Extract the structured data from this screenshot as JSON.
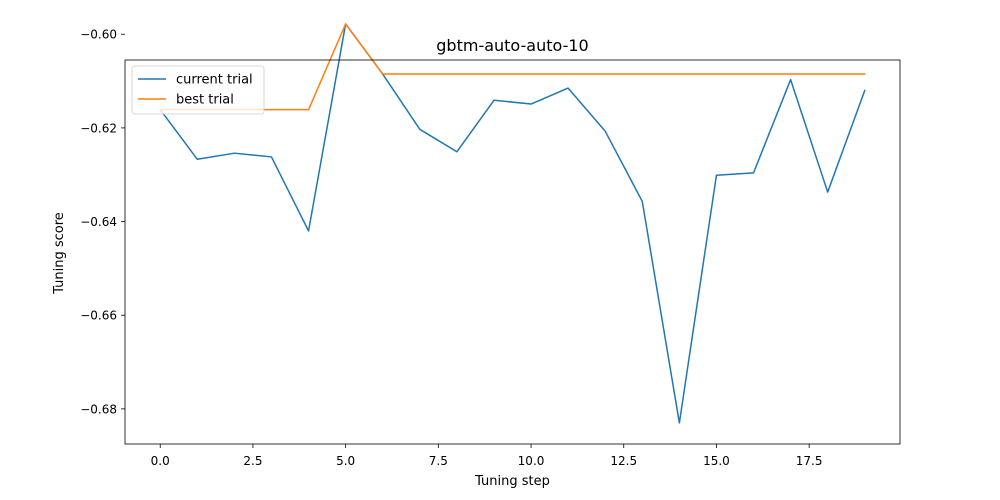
{
  "chart_data": {
    "type": "line",
    "title": "gbtm-auto-auto-10",
    "xlabel": "Tuning step",
    "ylabel": "Tuning score",
    "xlim": [
      -0.95,
      19.95
    ],
    "ylim": [
      -0.6875,
      -0.6055
    ],
    "xticks": [
      0,
      2.5,
      5,
      7.5,
      10,
      12.5,
      15,
      17.5
    ],
    "xtick_labels": [
      "0.0",
      "2.5",
      "5.0",
      "7.5",
      "10.0",
      "12.5",
      "15.0",
      "17.5"
    ],
    "yticks": [
      -0.68,
      -0.66,
      -0.64,
      -0.62,
      -0.6
    ],
    "ytick_labels": [
      "−0.68",
      "−0.66",
      "−0.64",
      "−0.62",
      "−0.60"
    ],
    "grid": false,
    "legend_position": "top-left",
    "x": [
      0,
      1,
      2,
      3,
      4,
      5,
      6,
      7,
      8,
      9,
      10,
      11,
      12,
      13,
      14,
      15,
      16,
      17,
      18,
      19
    ],
    "series": [
      {
        "name": "current trial",
        "color": "#1f77b4",
        "values": [
          -0.6161,
          -0.6267,
          -0.6254,
          -0.6262,
          -0.642,
          -0.5978,
          -0.6085,
          -0.6203,
          -0.6251,
          -0.6141,
          -0.6149,
          -0.6115,
          -0.6207,
          -0.6357,
          -0.683,
          -0.6301,
          -0.6296,
          -0.6097,
          -0.6337,
          -0.612
        ]
      },
      {
        "name": "best trial",
        "color": "#ff7f0e",
        "values": [
          -0.6161,
          -0.6161,
          -0.6161,
          -0.6161,
          -0.6161,
          -0.5978,
          -0.6085,
          -0.6085,
          -0.6085,
          -0.6085,
          -0.6085,
          -0.6085,
          -0.6085,
          -0.6085,
          -0.6085,
          -0.6085,
          -0.6085,
          -0.6085,
          -0.6085,
          -0.6085
        ]
      }
    ]
  }
}
